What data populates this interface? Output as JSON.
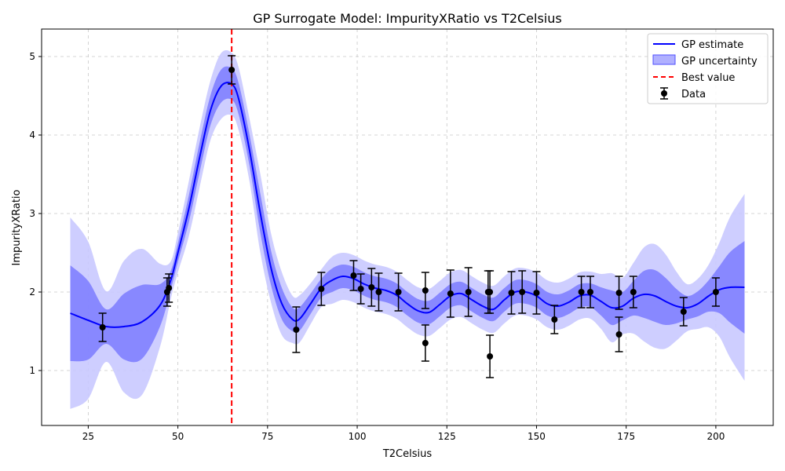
{
  "chart_data": {
    "type": "line",
    "title": "GP Surrogate Model: ImpurityXRatio vs T2Celsius",
    "xlabel": "T2Celsius",
    "ylabel": "ImpurityXRatio",
    "xlim": [
      12,
      216
    ],
    "ylim": [
      0.3,
      5.35
    ],
    "xticks": [
      25,
      50,
      75,
      100,
      125,
      150,
      175,
      200
    ],
    "yticks": [
      1,
      2,
      3,
      4,
      5
    ],
    "grid": true,
    "legend_position": "top-right",
    "legend": [
      {
        "key": "gp",
        "label": "GP estimate"
      },
      {
        "key": "unc",
        "label": "GP uncertainty"
      },
      {
        "key": "best",
        "label": "Best value"
      },
      {
        "key": "data",
        "label": "Data"
      }
    ],
    "best_value_x": 65,
    "colors": {
      "gp_line": "#0000ff",
      "band_inner": "#7b7bff",
      "band_outer": "#c9c9ff",
      "best_line": "#ff0000",
      "data": "#000000",
      "grid": "#c8c8c8"
    },
    "gp_x": [
      20,
      25,
      30,
      35,
      40,
      45,
      48,
      50,
      53,
      56,
      59,
      62,
      65,
      67,
      70,
      73,
      76,
      79,
      82,
      84,
      87,
      90,
      93,
      96,
      99,
      102,
      105,
      108,
      111,
      114,
      117,
      120,
      123,
      126,
      129,
      132,
      135,
      138,
      141,
      144,
      147,
      150,
      153,
      156,
      159,
      162,
      165,
      168,
      171,
      174,
      177,
      180,
      183,
      186,
      189,
      192,
      195,
      198,
      201,
      204,
      208
    ],
    "gp_mean": [
      1.73,
      1.64,
      1.56,
      1.56,
      1.62,
      1.83,
      2.15,
      2.5,
      3.05,
      3.7,
      4.3,
      4.62,
      4.65,
      4.45,
      3.8,
      3.0,
      2.3,
      1.85,
      1.65,
      1.66,
      1.85,
      2.05,
      2.15,
      2.2,
      2.17,
      2.1,
      2.05,
      2.02,
      1.96,
      1.85,
      1.76,
      1.74,
      1.84,
      1.95,
      1.98,
      1.9,
      1.82,
      1.78,
      1.9,
      2.0,
      2.0,
      1.95,
      1.85,
      1.82,
      1.87,
      1.95,
      1.96,
      1.88,
      1.8,
      1.82,
      1.92,
      1.97,
      1.95,
      1.88,
      1.82,
      1.8,
      1.85,
      1.95,
      2.03,
      2.06,
      2.06
    ],
    "gp_inner_sd": [
      0.61,
      0.5,
      0.22,
      0.42,
      0.47,
      0.27,
      0.12,
      0.12,
      0.17,
      0.19,
      0.19,
      0.21,
      0.2,
      0.2,
      0.2,
      0.25,
      0.22,
      0.2,
      0.15,
      0.15,
      0.13,
      0.12,
      0.15,
      0.15,
      0.15,
      0.15,
      0.15,
      0.15,
      0.15,
      0.15,
      0.15,
      0.15,
      0.15,
      0.15,
      0.15,
      0.15,
      0.15,
      0.15,
      0.15,
      0.15,
      0.15,
      0.15,
      0.15,
      0.15,
      0.15,
      0.15,
      0.15,
      0.18,
      0.22,
      0.18,
      0.22,
      0.3,
      0.33,
      0.3,
      0.22,
      0.15,
      0.16,
      0.2,
      0.3,
      0.45,
      0.59
    ],
    "gp_outer_sd": [
      1.22,
      1.0,
      0.45,
      0.84,
      0.93,
      0.53,
      0.24,
      0.25,
      0.35,
      0.38,
      0.38,
      0.42,
      0.4,
      0.4,
      0.4,
      0.5,
      0.44,
      0.4,
      0.3,
      0.3,
      0.26,
      0.24,
      0.3,
      0.3,
      0.3,
      0.3,
      0.3,
      0.3,
      0.3,
      0.3,
      0.3,
      0.3,
      0.3,
      0.3,
      0.3,
      0.3,
      0.3,
      0.3,
      0.3,
      0.3,
      0.3,
      0.3,
      0.3,
      0.3,
      0.3,
      0.3,
      0.3,
      0.35,
      0.44,
      0.36,
      0.45,
      0.6,
      0.66,
      0.6,
      0.44,
      0.3,
      0.32,
      0.4,
      0.6,
      0.9,
      1.19
    ],
    "data_points": [
      {
        "x": 29,
        "y": 1.55,
        "err": 0.18
      },
      {
        "x": 47,
        "y": 2.0,
        "err": 0.18
      },
      {
        "x": 47.5,
        "y": 2.05,
        "err": 0.18
      },
      {
        "x": 65,
        "y": 4.83,
        "err": 0.18
      },
      {
        "x": 83,
        "y": 1.52,
        "err": 0.29
      },
      {
        "x": 90,
        "y": 2.04,
        "err": 0.21
      },
      {
        "x": 99,
        "y": 2.21,
        "err": 0.19
      },
      {
        "x": 101,
        "y": 2.04,
        "err": 0.19
      },
      {
        "x": 104,
        "y": 2.06,
        "err": 0.24
      },
      {
        "x": 106,
        "y": 2.0,
        "err": 0.24
      },
      {
        "x": 111.5,
        "y": 2.0,
        "err": 0.24
      },
      {
        "x": 119,
        "y": 2.02,
        "err": 0.23
      },
      {
        "x": 119,
        "y": 1.35,
        "err": 0.23
      },
      {
        "x": 126,
        "y": 1.98,
        "err": 0.3
      },
      {
        "x": 131,
        "y": 2.0,
        "err": 0.31
      },
      {
        "x": 136.5,
        "y": 2.0,
        "err": 0.27
      },
      {
        "x": 137,
        "y": 2.0,
        "err": 0.27
      },
      {
        "x": 137,
        "y": 1.18,
        "err": 0.27
      },
      {
        "x": 143,
        "y": 1.99,
        "err": 0.27
      },
      {
        "x": 146,
        "y": 2.0,
        "err": 0.27
      },
      {
        "x": 150,
        "y": 1.99,
        "err": 0.27
      },
      {
        "x": 155,
        "y": 1.65,
        "err": 0.18
      },
      {
        "x": 162.5,
        "y": 2.0,
        "err": 0.2
      },
      {
        "x": 165,
        "y": 2.0,
        "err": 0.2
      },
      {
        "x": 173,
        "y": 1.46,
        "err": 0.22
      },
      {
        "x": 173,
        "y": 1.99,
        "err": 0.21
      },
      {
        "x": 177,
        "y": 2.0,
        "err": 0.2
      },
      {
        "x": 191,
        "y": 1.75,
        "err": 0.18
      },
      {
        "x": 200,
        "y": 2.0,
        "err": 0.18
      }
    ]
  }
}
